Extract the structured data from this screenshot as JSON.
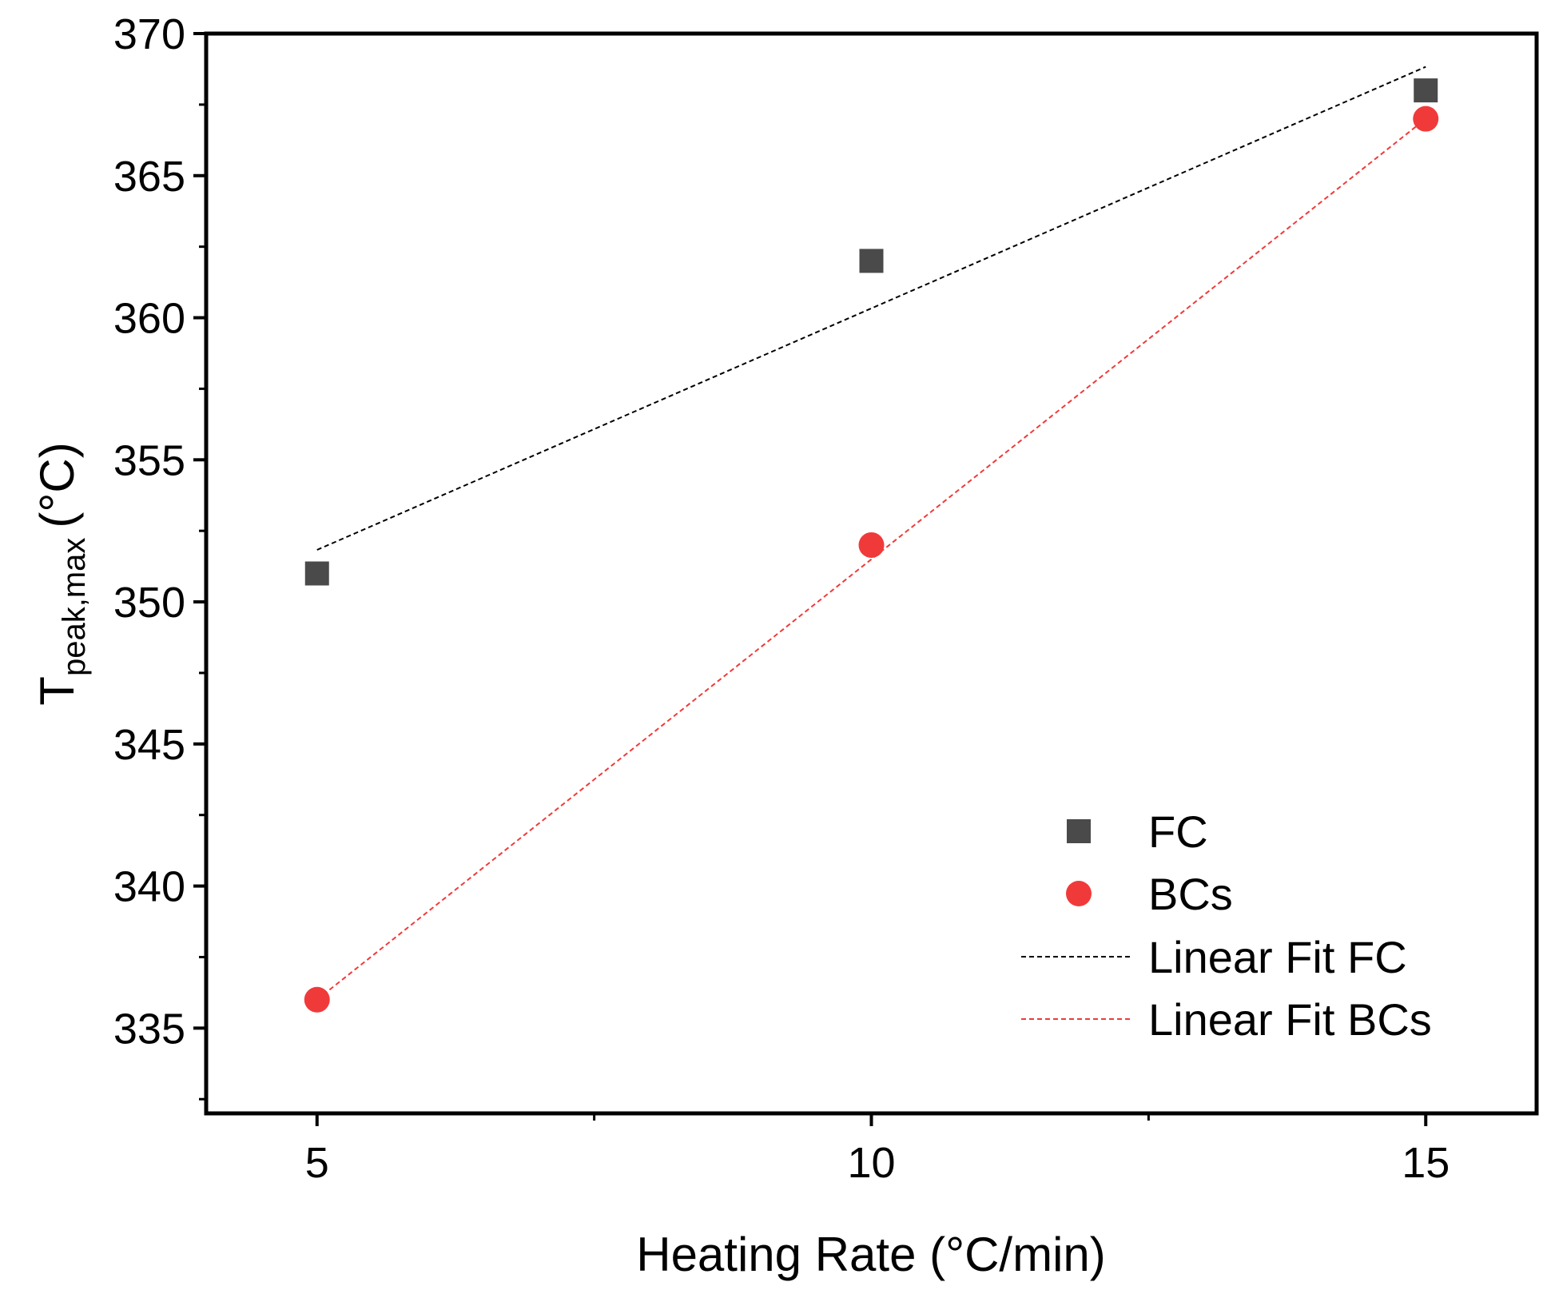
{
  "chart_data": {
    "type": "scatter",
    "title": "",
    "xlabel": "Heating Rate (°C/min)",
    "ylabel_main": "T",
    "ylabel_sub": "peak,max",
    "ylabel_unit": "(°C)",
    "xlim": [
      4,
      16
    ],
    "ylim": [
      332,
      370
    ],
    "xticks": [
      5,
      10,
      15
    ],
    "yticks": [
      335,
      340,
      345,
      350,
      355,
      360,
      365,
      370
    ],
    "grid": false,
    "legend_position": "bottom-right",
    "series": [
      {
        "name": "FC",
        "kind": "points",
        "marker": "square",
        "color": "#4a4a4a",
        "x": [
          5,
          10,
          15
        ],
        "y": [
          351,
          362,
          368
        ]
      },
      {
        "name": "BCs",
        "kind": "points",
        "marker": "circle",
        "color": "#f03a3a",
        "x": [
          5,
          10,
          15
        ],
        "y": [
          336,
          352,
          367
        ]
      },
      {
        "name": "Linear Fit FC",
        "kind": "line",
        "dash": "dashed",
        "color": "#000000",
        "x": [
          5,
          15
        ],
        "y": [
          351.83,
          368.83
        ]
      },
      {
        "name": "Linear Fit BCs",
        "kind": "line",
        "dash": "dashed",
        "color": "#f03a3a",
        "x": [
          5,
          15
        ],
        "y": [
          336.0,
          367.0
        ]
      }
    ]
  }
}
